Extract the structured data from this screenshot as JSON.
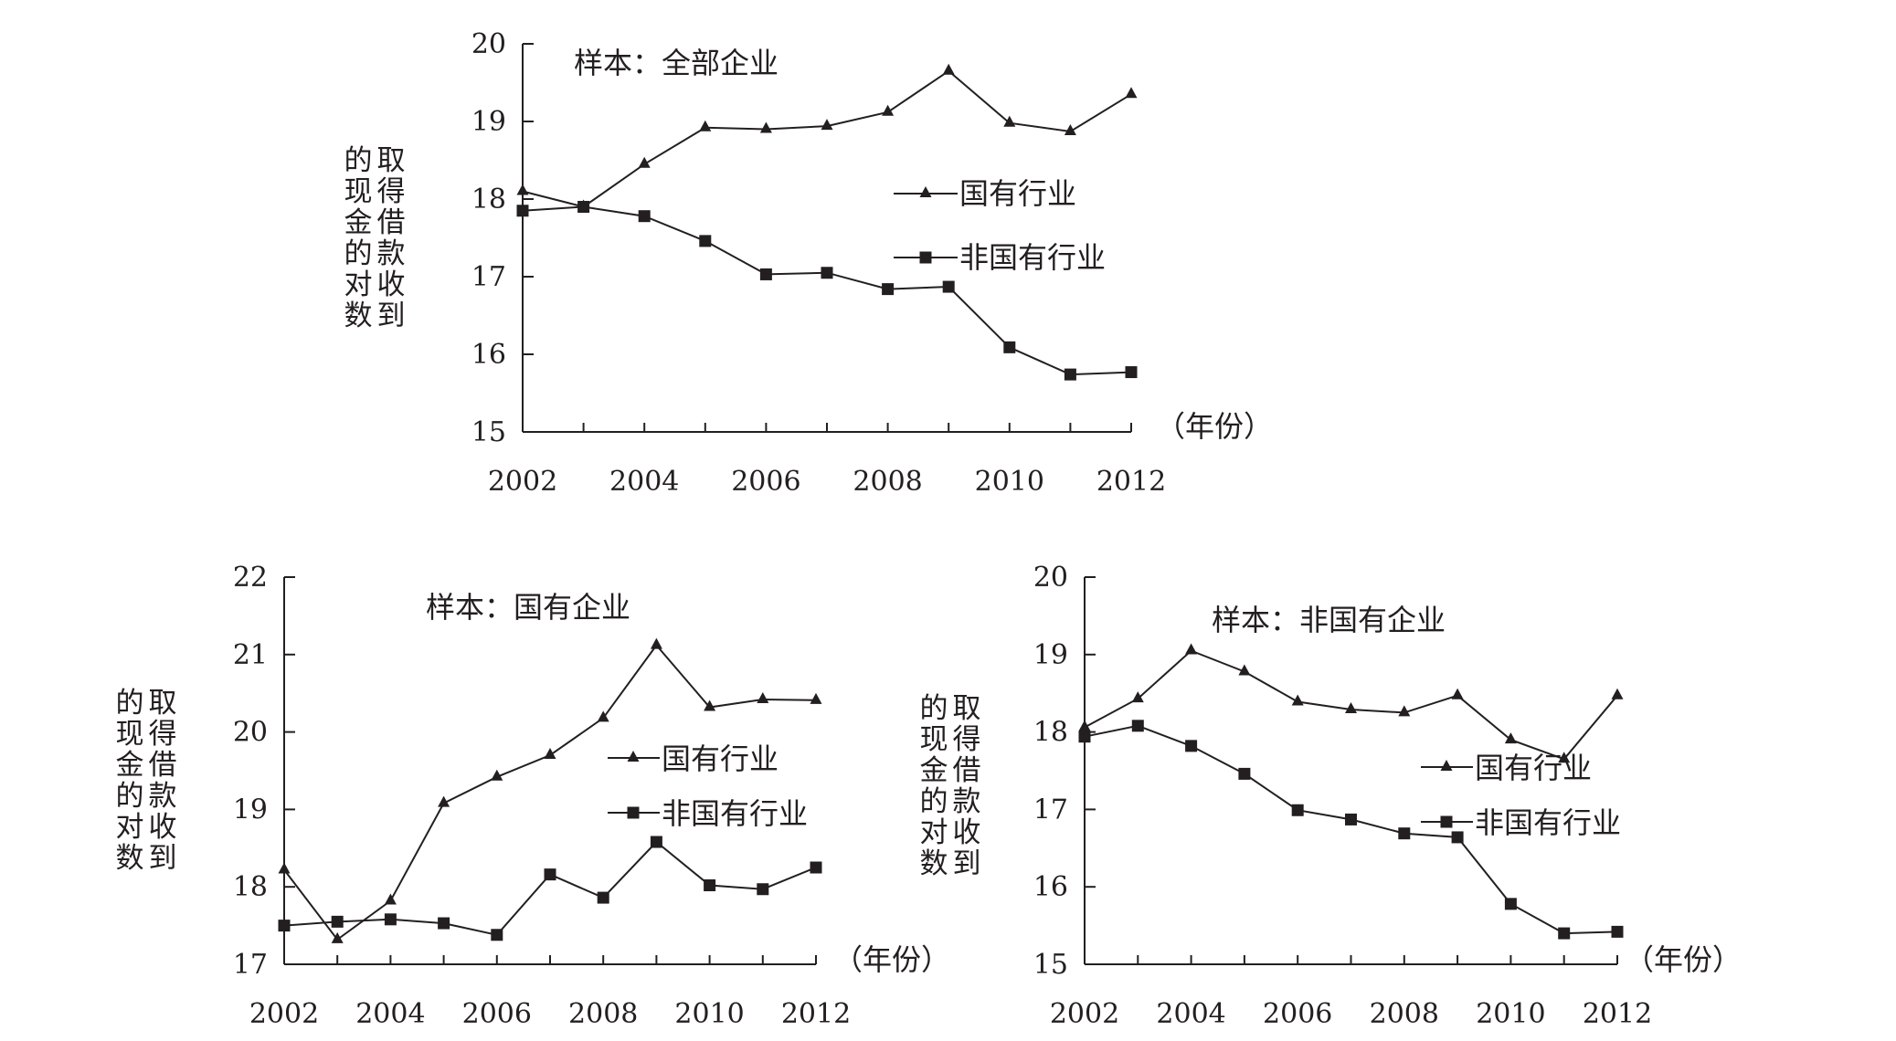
{
  "chart_data": [
    {
      "type": "line",
      "title": "样本：全部企业",
      "ylabel": [
        "取得借款收到",
        "的现金的对数"
      ],
      "xunit": "（年份）",
      "x": [
        2002,
        2003,
        2004,
        2005,
        2006,
        2007,
        2008,
        2009,
        2010,
        2011,
        2012
      ],
      "xticks": [
        "2002",
        "2004",
        "2006",
        "2008",
        "2010",
        "2012"
      ],
      "xlim": [
        2002,
        2012
      ],
      "ylim": [
        15,
        20
      ],
      "yticks": [
        "15",
        "16",
        "17",
        "18",
        "19",
        "20"
      ],
      "legend_position": "right",
      "series": [
        {
          "name": "国有行业",
          "marker": "triangle",
          "values": [
            18.1,
            17.9,
            18.45,
            18.92,
            18.9,
            18.94,
            19.12,
            19.65,
            18.98,
            18.87,
            19.35
          ]
        },
        {
          "name": "非国有行业",
          "marker": "square",
          "values": [
            17.85,
            17.9,
            17.78,
            17.46,
            17.03,
            17.05,
            16.84,
            16.87,
            16.09,
            15.74,
            15.77
          ]
        }
      ]
    },
    {
      "type": "line",
      "title": "样本：国有企业",
      "ylabel": [
        "取得借款收到",
        "的现金的对数"
      ],
      "xunit": "（年份）",
      "x": [
        2002,
        2003,
        2004,
        2005,
        2006,
        2007,
        2008,
        2009,
        2010,
        2011,
        2012
      ],
      "xticks": [
        "2002",
        "2004",
        "2006",
        "2008",
        "2010",
        "2012"
      ],
      "xlim": [
        2002,
        2012
      ],
      "ylim": [
        17,
        22
      ],
      "yticks": [
        "17",
        "18",
        "19",
        "20",
        "21",
        "22"
      ],
      "legend_position": "right",
      "series": [
        {
          "name": "国有行业",
          "marker": "triangle",
          "values": [
            18.22,
            17.32,
            17.82,
            19.08,
            19.42,
            19.7,
            20.18,
            21.12,
            20.32,
            20.42,
            20.41
          ]
        },
        {
          "name": "非国有行业",
          "marker": "square",
          "values": [
            17.5,
            17.55,
            17.58,
            17.53,
            17.38,
            18.16,
            17.86,
            18.58,
            18.02,
            17.97,
            18.25
          ]
        }
      ]
    },
    {
      "type": "line",
      "title": "样本：非国有企业",
      "ylabel": [
        "取得借款收到",
        "的现金的对数"
      ],
      "xunit": "（年份）",
      "x": [
        2002,
        2003,
        2004,
        2005,
        2006,
        2007,
        2008,
        2009,
        2010,
        2011,
        2012
      ],
      "xticks": [
        "2002",
        "2004",
        "2006",
        "2008",
        "2010",
        "2012"
      ],
      "xlim": [
        2002,
        2012
      ],
      "ylim": [
        15,
        20
      ],
      "yticks": [
        "15",
        "16",
        "17",
        "18",
        "19",
        "20"
      ],
      "legend_position": "right",
      "series": [
        {
          "name": "国有行业",
          "marker": "triangle",
          "values": [
            18.06,
            18.43,
            19.05,
            18.78,
            18.39,
            18.29,
            18.25,
            18.47,
            17.9,
            17.65,
            18.47
          ]
        },
        {
          "name": "非国有行业",
          "marker": "square",
          "values": [
            17.94,
            18.08,
            17.82,
            17.46,
            16.99,
            16.87,
            16.69,
            16.64,
            15.78,
            15.4,
            15.42
          ]
        }
      ]
    }
  ],
  "colors": {
    "line": "#231f20",
    "background": "#ffffff"
  }
}
